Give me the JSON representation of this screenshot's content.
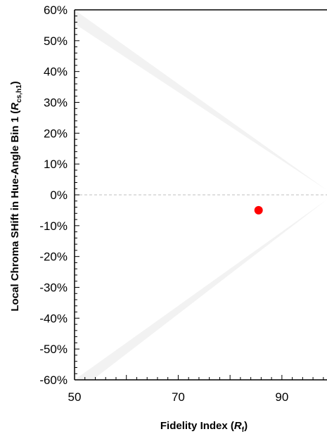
{
  "chart_data": {
    "type": "scatter",
    "x": [
      85.5
    ],
    "y": [
      -5
    ],
    "xlim": [
      50,
      98.7
    ],
    "ylim": [
      -60,
      60
    ],
    "x_ticks": [
      "50",
      "70",
      "90"
    ],
    "x_tick_values": [
      50,
      70,
      90
    ],
    "y_ticks": [
      "60%",
      "50%",
      "40%",
      "30%",
      "20%",
      "10%",
      "0%",
      "-10%",
      "-20%",
      "-30%",
      "-40%",
      "-50%",
      "-60%"
    ],
    "y_tick_values": [
      60,
      50,
      40,
      30,
      20,
      10,
      0,
      -10,
      -20,
      -30,
      -40,
      -50,
      -60
    ],
    "xlabel": {
      "main": "Fidelity Index (",
      "italic": "R",
      "sub": "f",
      "close": ")"
    },
    "ylabel": {
      "main": "Local Chroma SHift in Hue-Angle Bin 1 (",
      "italic": "R",
      "sub": "cs,h1",
      "close": ")"
    },
    "point_color": "#ff0000",
    "shade_color": "#f2f2f2",
    "zero_line_color": "#bfbfbf",
    "shaded_regions": [
      {
        "x": [
          50,
          50,
          98.7
        ],
        "y": [
          60,
          55.5,
          1.5
        ]
      },
      {
        "x": [
          50,
          50,
          53.5,
          98.7
        ],
        "y": [
          -60,
          -60,
          -60,
          -1.5
        ]
      }
    ],
    "grid": false
  }
}
